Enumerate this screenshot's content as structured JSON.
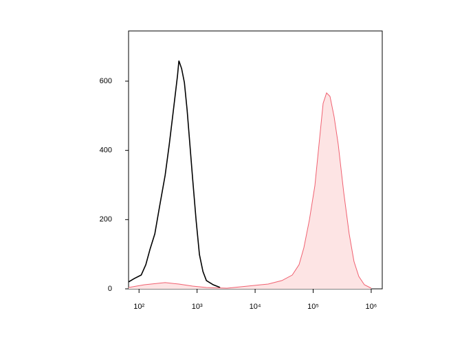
{
  "chart_data": {
    "type": "histogram-overlay",
    "xscale": "log",
    "xlim": [
      66,
      1550000
    ],
    "ylim": [
      0,
      745
    ],
    "xticks": [
      {
        "value": 100,
        "label": "10²"
      },
      {
        "value": 1000,
        "label": "10³"
      },
      {
        "value": 10000,
        "label": "10⁴"
      },
      {
        "value": 100000,
        "label": "10⁵"
      },
      {
        "value": 1000000,
        "label": "10⁶"
      }
    ],
    "yticks": [
      0,
      200,
      400,
      600
    ],
    "series": [
      {
        "color": "#000000",
        "fill": false,
        "x": [
          66,
          83,
          109,
          131,
          155,
          187,
          226,
          282,
          332,
          391,
          460,
          486,
          542,
          604,
          674,
          751,
          838,
          960,
          1099,
          1262,
          1446,
          1897,
          2489
        ],
        "values": [
          20,
          30,
          40,
          70,
          115,
          159,
          238,
          328,
          417,
          516,
          616,
          659,
          636,
          596,
          516,
          417,
          318,
          199,
          99,
          50,
          24,
          12,
          4
        ]
      },
      {
        "color": "#f06070",
        "fill": true,
        "fill_color": "#fde4e4",
        "x": [
          66,
          124,
          282,
          486,
          838,
          1446,
          3273,
          7413,
          16788,
          28960,
          43580,
          57200,
          69200,
          86000,
          107000,
          129500,
          148500,
          170200,
          195000,
          229700,
          270500,
          336400,
          418000,
          505800,
          612300,
          761800,
          1000000
        ],
        "values": [
          4,
          12,
          18,
          14,
          8,
          4,
          2,
          8,
          14,
          24,
          40,
          70,
          119,
          199,
          298,
          437,
          536,
          566,
          556,
          497,
          417,
          278,
          159,
          79,
          36,
          12,
          2
        ]
      }
    ]
  }
}
